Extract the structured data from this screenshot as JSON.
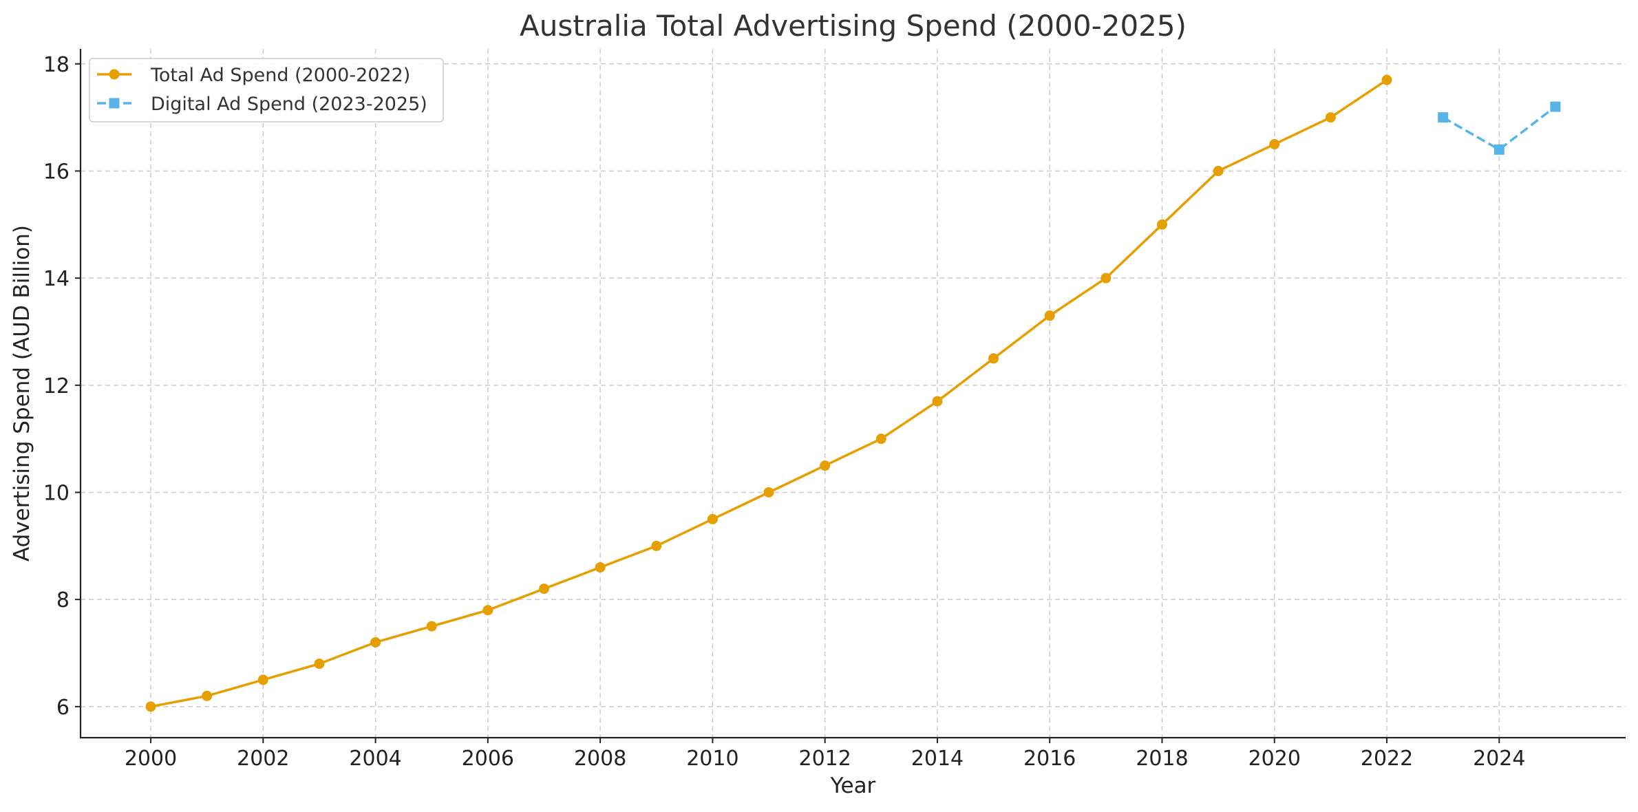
{
  "chart_data": {
    "type": "line",
    "title": "Australia Total Advertising Spend (2000-2025)",
    "xlabel": "Year",
    "ylabel": "Advertising Spend (AUD Billion)",
    "xlim": [
      1998.75,
      2026.25
    ],
    "ylim": [
      5.42,
      18.28
    ],
    "xticks": [
      2000,
      2002,
      2004,
      2006,
      2008,
      2010,
      2012,
      2014,
      2016,
      2018,
      2020,
      2022,
      2024
    ],
    "yticks": [
      6,
      8,
      10,
      12,
      14,
      16,
      18
    ],
    "grid": true,
    "legend_position": "top-left",
    "series": [
      {
        "name": "Total Ad Spend (2000-2022)",
        "color": "#E69F00",
        "marker": "circle",
        "line_style": "solid",
        "x": [
          2000,
          2001,
          2002,
          2003,
          2004,
          2005,
          2006,
          2007,
          2008,
          2009,
          2010,
          2011,
          2012,
          2013,
          2014,
          2015,
          2016,
          2017,
          2018,
          2019,
          2020,
          2021,
          2022
        ],
        "y": [
          6.0,
          6.2,
          6.5,
          6.8,
          7.2,
          7.5,
          7.8,
          8.2,
          8.6,
          9.0,
          9.5,
          10.0,
          10.5,
          11.0,
          11.7,
          12.5,
          13.3,
          14.0,
          15.0,
          16.0,
          16.5,
          17.0,
          17.7
        ]
      },
      {
        "name": "Digital Ad Spend (2023-2025)",
        "color": "#56B4E9",
        "marker": "square",
        "line_style": "dashed",
        "x": [
          2023,
          2024,
          2025
        ],
        "y": [
          17.0,
          16.4,
          17.2
        ]
      }
    ]
  }
}
